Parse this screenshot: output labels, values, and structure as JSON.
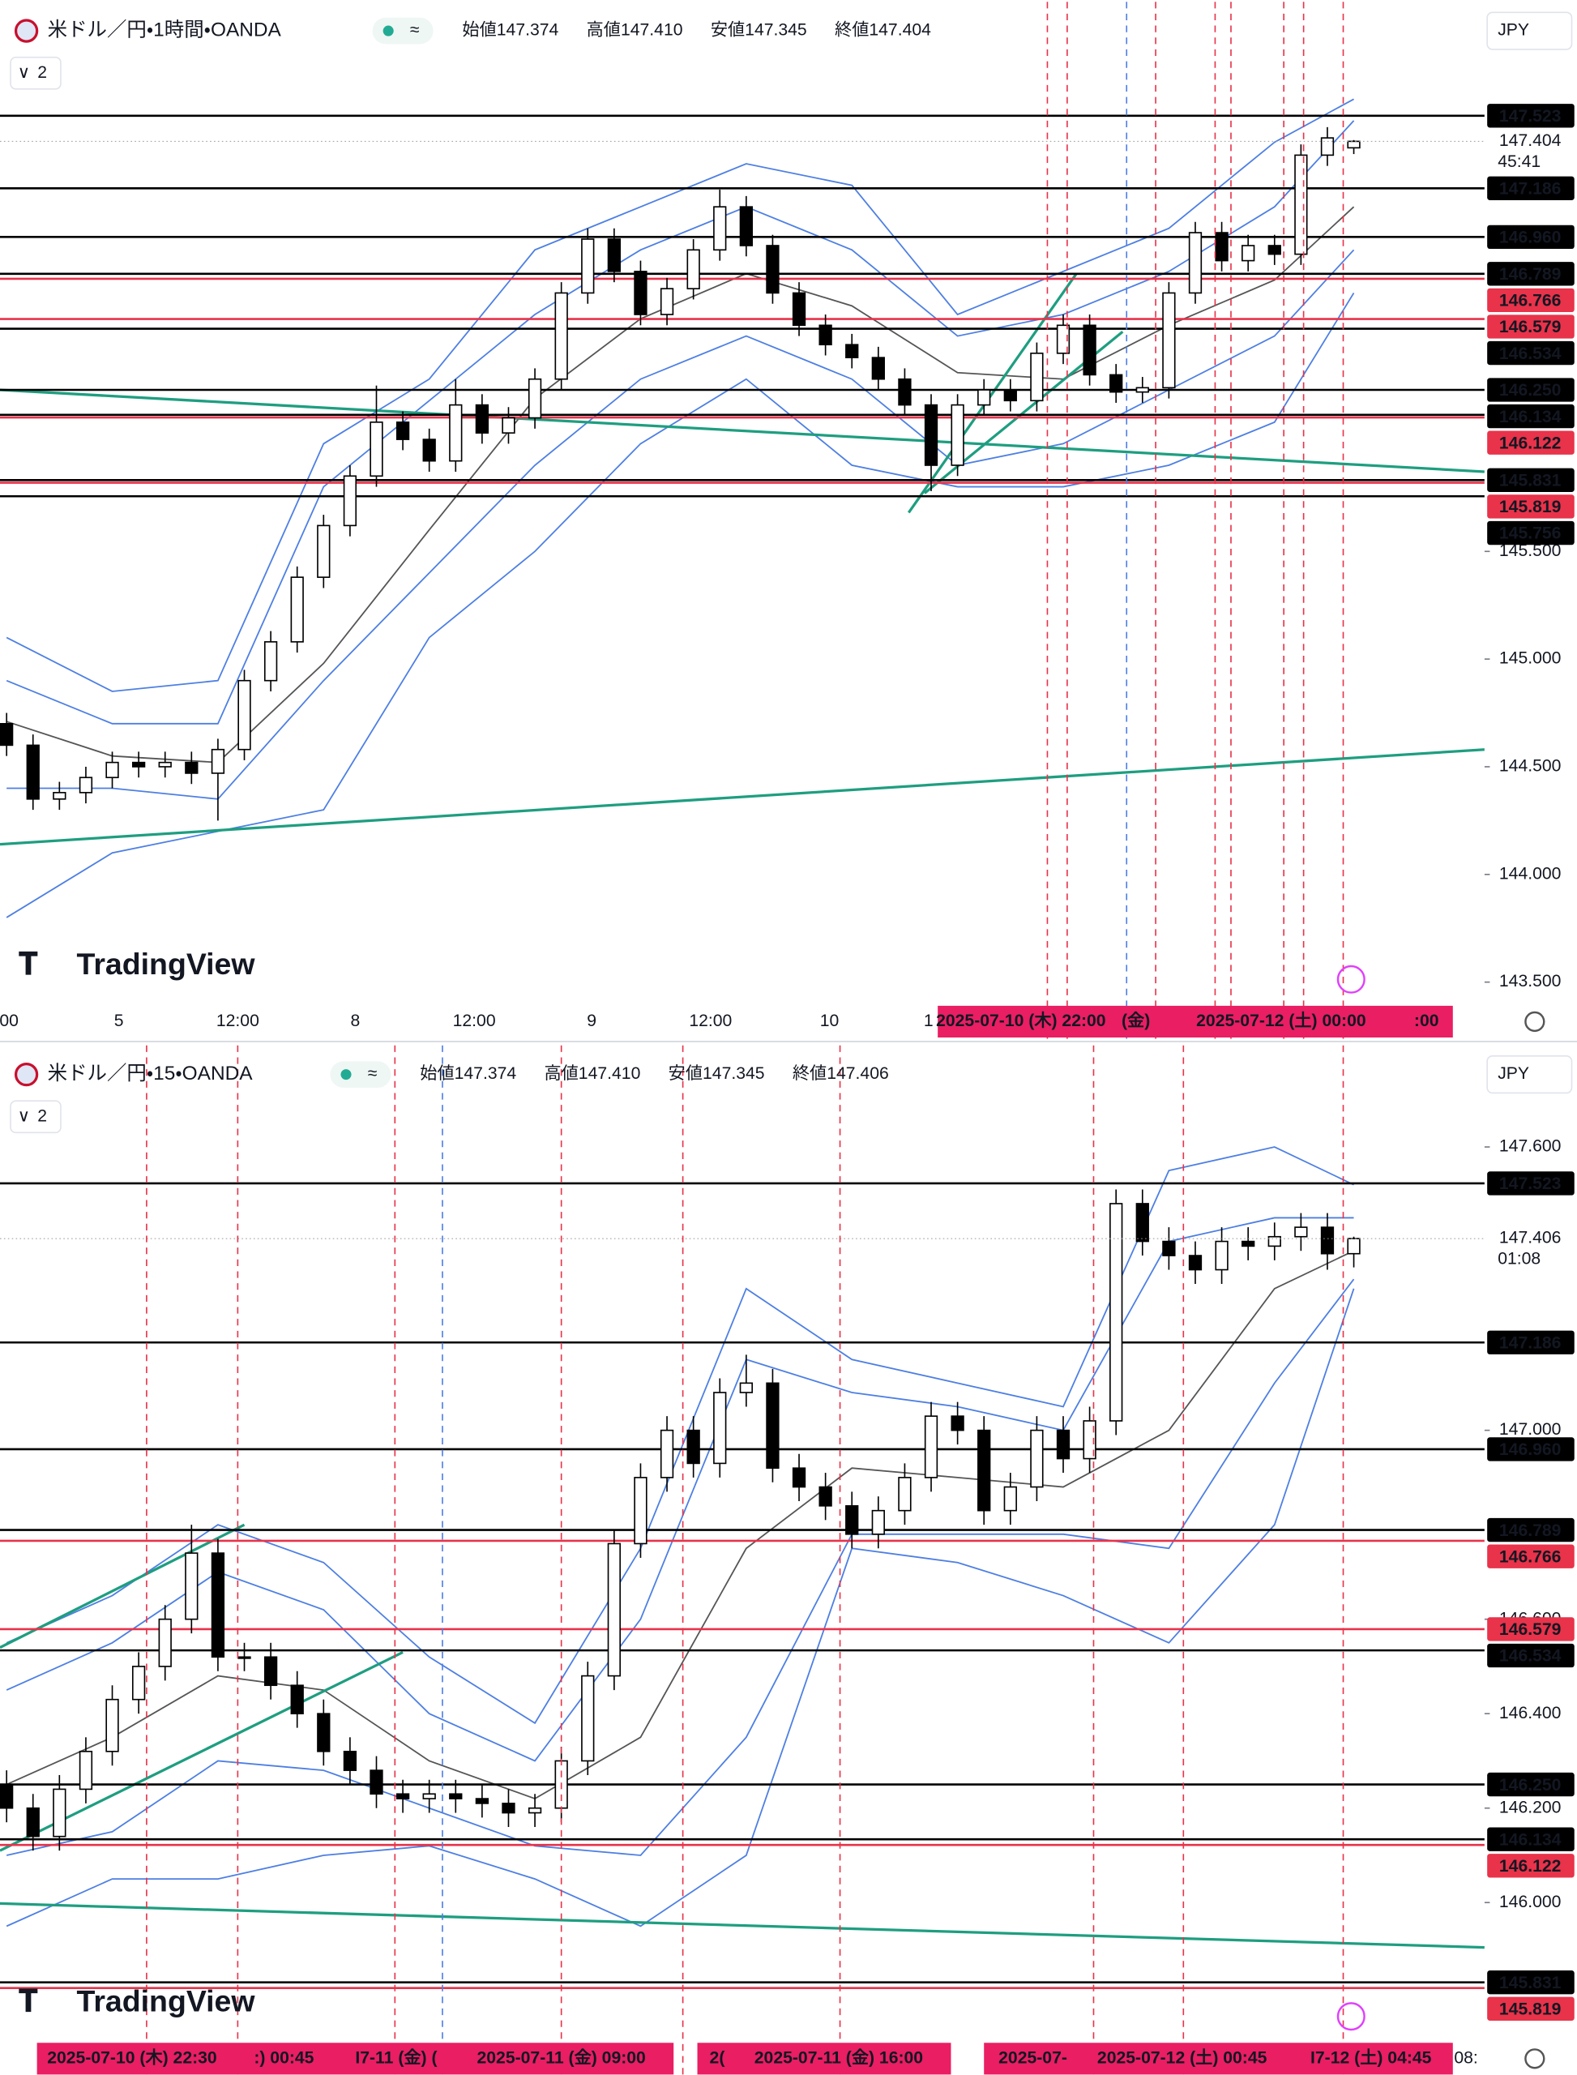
{
  "chart_data": [
    {
      "type": "candlestick",
      "title": "米ドル／円・1時間・OANDA",
      "ohlc": [
        "始値147.374",
        "高値147.410",
        "安値147.345",
        "終値147.404"
      ],
      "indicator_count": "2",
      "currency": "JPY",
      "logo": "TradingView",
      "up_color": "#ffffff",
      "down_color": "#000000",
      "open": [
        144.7,
        144.6,
        144.35,
        144.38,
        144.45,
        144.52,
        144.5,
        144.52,
        144.47,
        144.58,
        144.9,
        145.08,
        145.38,
        145.62,
        145.85,
        146.1,
        146.02,
        145.92,
        146.18,
        146.05,
        146.12,
        146.3,
        146.7,
        146.95,
        146.8,
        146.6,
        146.72,
        146.9,
        147.1,
        146.92,
        146.7,
        146.55,
        146.46,
        146.4,
        146.3,
        146.18,
        145.9,
        146.18,
        146.25,
        146.2,
        146.42,
        146.55,
        146.32,
        146.24,
        146.26,
        146.7,
        146.98,
        146.85,
        146.92,
        146.88,
        147.34,
        147.374
      ],
      "high": [
        144.75,
        144.65,
        144.43,
        144.5,
        144.57,
        144.57,
        144.57,
        144.57,
        144.63,
        144.95,
        145.13,
        145.43,
        145.67,
        145.9,
        146.27,
        146.15,
        146.07,
        146.3,
        146.23,
        146.17,
        146.35,
        146.75,
        147.0,
        147.0,
        146.85,
        146.77,
        146.95,
        147.18,
        147.15,
        146.97,
        146.75,
        146.6,
        146.51,
        146.45,
        146.35,
        146.23,
        146.23,
        146.3,
        146.3,
        146.47,
        146.6,
        146.6,
        146.37,
        146.31,
        146.75,
        147.03,
        147.03,
        146.97,
        146.97,
        147.39,
        147.47,
        147.41
      ],
      "low": [
        144.55,
        144.3,
        144.3,
        144.33,
        144.4,
        144.45,
        144.45,
        144.42,
        144.25,
        144.53,
        144.85,
        145.03,
        145.33,
        145.57,
        145.8,
        145.97,
        145.87,
        145.87,
        146.0,
        146.0,
        146.07,
        146.25,
        146.65,
        146.75,
        146.55,
        146.55,
        146.67,
        146.85,
        146.87,
        146.65,
        146.5,
        146.41,
        146.35,
        146.25,
        146.13,
        145.78,
        145.85,
        146.13,
        146.15,
        146.15,
        146.37,
        146.27,
        146.19,
        146.19,
        146.21,
        146.65,
        146.8,
        146.8,
        146.83,
        146.83,
        147.29,
        147.345
      ],
      "close": [
        144.6,
        144.35,
        144.38,
        144.45,
        144.52,
        144.5,
        144.52,
        144.47,
        144.58,
        144.9,
        145.08,
        145.38,
        145.62,
        145.85,
        146.1,
        146.02,
        145.92,
        146.18,
        146.05,
        146.12,
        146.3,
        146.7,
        146.95,
        146.8,
        146.6,
        146.72,
        146.9,
        147.1,
        146.92,
        146.7,
        146.55,
        146.46,
        146.4,
        146.3,
        146.18,
        145.9,
        146.18,
        146.25,
        146.2,
        146.42,
        146.55,
        146.32,
        146.24,
        146.26,
        146.7,
        146.98,
        146.85,
        146.92,
        146.88,
        147.34,
        147.42,
        147.404
      ],
      "bands": {
        "x": [
          0,
          4,
          8,
          12,
          16,
          20,
          24,
          28,
          32,
          36,
          40,
          44,
          48,
          51
        ],
        "series": [
          {
            "color": "#555555",
            "values": [
              144.71,
              144.55,
              144.52,
              144.98,
              145.6,
              146.21,
              146.58,
              146.79,
              146.64,
              146.33,
              146.3,
              146.55,
              146.76,
              147.1
            ]
          },
          {
            "color": "#4d7fe3",
            "values": [
              144.9,
              144.7,
              144.7,
              145.8,
              146.2,
              146.6,
              146.9,
              147.1,
              146.9,
              146.5,
              146.6,
              146.8,
              147.1,
              147.5
            ]
          },
          {
            "color": "#4d7fe3",
            "values": [
              144.4,
              144.4,
              144.35,
              144.9,
              145.4,
              145.9,
              146.3,
              146.5,
              146.3,
              145.9,
              146.0,
              146.25,
              146.5,
              146.9
            ]
          },
          {
            "color": "#4d7fe3",
            "values": [
              145.1,
              144.85,
              144.9,
              146.0,
              146.3,
              146.9,
              147.1,
              147.3,
              147.2,
              146.6,
              146.8,
              147.0,
              147.4,
              147.6
            ]
          },
          {
            "color": "#4d7fe3",
            "values": [
              143.8,
              144.1,
              144.2,
              144.3,
              145.1,
              145.5,
              146.0,
              146.3,
              145.9,
              145.8,
              145.8,
              145.9,
              146.1,
              146.7
            ]
          }
        ]
      },
      "trend_color": "#1e9e80",
      "trendlines": [
        {
          "x": [
            -0.25,
            55.95
          ],
          "y": [
            146.25,
            145.87
          ]
        },
        {
          "x": [
            -0.25,
            55.95
          ],
          "y": [
            144.14,
            144.58
          ]
        },
        {
          "x": [
            34.15,
            40.5
          ],
          "y": [
            145.68,
            146.79
          ]
        },
        {
          "x": [
            34.75,
            42.25
          ],
          "y": [
            145.77,
            146.52
          ]
        }
      ],
      "levels": [
        {
          "value": 147.523,
          "color": "#000000"
        },
        {
          "value": 147.186,
          "color": "#000000"
        },
        {
          "value": 146.96,
          "label": "146.960",
          "color": "#000000"
        },
        {
          "value": 146.789,
          "color": "#000000"
        },
        {
          "value": 146.766,
          "color": "#e8334a"
        },
        {
          "value": 146.579,
          "color": "#e8334a"
        },
        {
          "value": 146.534,
          "color": "#000000"
        },
        {
          "value": 146.25,
          "label": "146.250",
          "color": "#000000"
        },
        {
          "value": 146.134,
          "color": "#000000"
        },
        {
          "value": 146.122,
          "color": "#e8334a"
        },
        {
          "value": 145.831,
          "color": "#000000"
        },
        {
          "value": 145.819,
          "color": "#e8334a"
        },
        {
          "value": 145.756,
          "color": "#000000"
        }
      ],
      "last": {
        "value": 147.404,
        "countdown": "45:41"
      },
      "ylim": [
        143.39,
        148.052
      ],
      "yticks": [
        {
          "value": 143.5,
          "label": "143.500"
        },
        {
          "value": 144,
          "label": "144.000"
        },
        {
          "value": 144.5,
          "label": "144.500"
        },
        {
          "value": 145,
          "label": "145.000"
        },
        {
          "value": 145.5,
          "label": "145.500"
        }
      ],
      "x_labels": [
        ":00",
        "5",
        "12:00",
        "8",
        "12:00",
        "9",
        "12:00",
        "10",
        "1"
      ],
      "crosshair_labels": [
        "2025-07-10 (木)  22:00",
        "(金)",
        "2025-07-12 (土)  00:00",
        ":00"
      ]
    },
    {
      "type": "candlestick",
      "title": "米ドル／円・15・OANDA",
      "ohlc": [
        "始値147.374",
        "高値147.410",
        "安値147.345",
        "終値147.406"
      ],
      "indicator_count": "2",
      "currency": "JPY",
      "logo": "TradingView",
      "up_color": "#ffffff",
      "down_color": "#000000",
      "open": [
        146.25,
        146.2,
        146.14,
        146.24,
        146.32,
        146.43,
        146.5,
        146.6,
        146.74,
        146.52,
        146.52,
        146.46,
        146.4,
        146.32,
        146.28,
        146.23,
        146.22,
        146.23,
        146.22,
        146.21,
        146.19,
        146.2,
        146.3,
        146.48,
        146.76,
        146.9,
        147.0,
        146.93,
        147.08,
        147.1,
        146.92,
        146.88,
        146.84,
        146.78,
        146.83,
        146.9,
        147.03,
        147.0,
        146.83,
        146.88,
        147.0,
        146.94,
        147.02,
        147.48,
        147.4,
        147.37,
        147.34,
        147.4,
        147.39,
        147.41,
        147.43,
        147.374
      ],
      "high": [
        146.28,
        146.23,
        146.27,
        146.35,
        146.46,
        146.53,
        146.63,
        146.8,
        146.77,
        146.55,
        146.55,
        146.49,
        146.43,
        146.35,
        146.31,
        146.26,
        146.26,
        146.26,
        146.25,
        146.24,
        146.23,
        146.33,
        146.51,
        146.79,
        146.93,
        147.03,
        147.03,
        147.11,
        147.16,
        147.13,
        146.95,
        146.91,
        146.87,
        146.86,
        146.93,
        147.06,
        147.06,
        147.03,
        146.91,
        147.03,
        147.03,
        147.05,
        147.51,
        147.51,
        147.43,
        147.4,
        147.43,
        147.43,
        147.44,
        147.46,
        147.46,
        147.41
      ],
      "low": [
        146.17,
        146.11,
        146.11,
        146.21,
        146.29,
        146.4,
        146.47,
        146.57,
        146.49,
        146.49,
        146.43,
        146.37,
        146.29,
        146.25,
        146.2,
        146.19,
        146.19,
        146.19,
        146.18,
        146.16,
        146.16,
        146.17,
        146.27,
        146.45,
        146.73,
        146.87,
        146.9,
        146.9,
        147.05,
        146.89,
        146.85,
        146.81,
        146.75,
        146.75,
        146.8,
        146.87,
        146.97,
        146.8,
        146.8,
        146.85,
        146.91,
        146.91,
        146.99,
        147.37,
        147.34,
        147.31,
        147.31,
        147.36,
        147.36,
        147.38,
        147.34,
        147.345
      ],
      "close": [
        146.2,
        146.14,
        146.24,
        146.32,
        146.43,
        146.5,
        146.6,
        146.74,
        146.52,
        146.52,
        146.46,
        146.4,
        146.32,
        146.28,
        146.23,
        146.22,
        146.23,
        146.22,
        146.21,
        146.19,
        146.2,
        146.3,
        146.48,
        146.76,
        146.9,
        147.0,
        146.93,
        147.08,
        147.1,
        146.92,
        146.88,
        146.84,
        146.78,
        146.83,
        146.9,
        147.03,
        147.0,
        146.83,
        146.88,
        147.0,
        146.94,
        147.02,
        147.48,
        147.4,
        147.37,
        147.34,
        147.4,
        147.39,
        147.41,
        147.43,
        147.374,
        147.406
      ],
      "bands": {
        "x": [
          0,
          4,
          8,
          12,
          16,
          20,
          24,
          28,
          32,
          36,
          40,
          44,
          48,
          51
        ],
        "series": [
          {
            "color": "#555555",
            "values": [
              146.25,
              146.35,
              146.48,
              146.45,
              146.3,
              146.22,
              146.35,
              146.75,
              146.92,
              146.9,
              146.88,
              147.0,
              147.3,
              147.38
            ]
          },
          {
            "color": "#4d7fe3",
            "values": [
              146.45,
              146.55,
              146.7,
              146.62,
              146.4,
              146.3,
              146.6,
              147.15,
              147.08,
              147.05,
              147.0,
              147.4,
              147.45,
              147.45
            ]
          },
          {
            "color": "#4d7fe3",
            "values": [
              146.1,
              146.15,
              146.3,
              146.28,
              146.2,
              146.12,
              146.1,
              146.35,
              146.78,
              146.78,
              146.78,
              146.75,
              147.1,
              147.32
            ]
          },
          {
            "color": "#4d7fe3",
            "values": [
              146.55,
              146.65,
              146.8,
              146.72,
              146.52,
              146.38,
              146.75,
              147.3,
              147.15,
              147.1,
              147.05,
              147.55,
              147.6,
              147.52
            ]
          },
          {
            "color": "#4d7fe3",
            "values": [
              145.95,
              146.05,
              146.05,
              146.1,
              146.12,
              146.05,
              145.95,
              146.1,
              146.75,
              146.72,
              146.65,
              146.55,
              146.8,
              147.3
            ]
          }
        ]
      },
      "trend_color": "#1e9e80",
      "trendlines": [
        {
          "x": [
            -0.25,
            55.95
          ],
          "y": [
            145.998,
            145.905
          ]
        },
        {
          "x": [
            -0.25,
            9
          ],
          "y": [
            146.54,
            146.8
          ]
        },
        {
          "x": [
            -0.25,
            15
          ],
          "y": [
            146.11,
            146.53
          ]
        }
      ],
      "levels": [
        {
          "value": 147.523,
          "color": "#000000"
        },
        {
          "value": 147.186,
          "color": "#000000"
        },
        {
          "value": 146.96,
          "label": "146.960",
          "color": "#000000"
        },
        {
          "value": 146.789,
          "color": "#000000"
        },
        {
          "value": 146.766,
          "color": "#e8334a"
        },
        {
          "value": 146.579,
          "color": "#e8334a"
        },
        {
          "value": 146.534,
          "color": "#000000"
        },
        {
          "value": 146.25,
          "label": "146.250",
          "color": "#000000"
        },
        {
          "value": 146.134,
          "color": "#000000"
        },
        {
          "value": 146.122,
          "color": "#e8334a"
        },
        {
          "value": 145.831,
          "color": "#000000"
        },
        {
          "value": 145.819,
          "color": "#e8334a"
        }
      ],
      "last": {
        "value": 147.406,
        "countdown": "01:08"
      },
      "ylim": [
        145.703,
        147.815
      ],
      "yticks": [
        {
          "value": 147.6,
          "label": "147.600"
        },
        {
          "value": 147,
          "label": "147.000"
        },
        {
          "value": 146.6,
          "label": "146.600"
        },
        {
          "value": 146.4,
          "label": "146.400"
        },
        {
          "value": 146.2,
          "label": "146.200"
        },
        {
          "value": 146,
          "label": "146.000"
        }
      ],
      "x_labels": [
        "08:"
      ],
      "crosshair_labels": [
        "2025-07-10 (木)  22:30",
        ":)  00:45",
        "I7-11 (金)  (",
        "2025-07-11 (金)  09:00",
        "2(",
        "2025-07-11 (金)  16:00",
        "2025-07-",
        "2025-07-12 (土)  00:45",
        "I7-12 (土)  04:45"
      ]
    }
  ]
}
